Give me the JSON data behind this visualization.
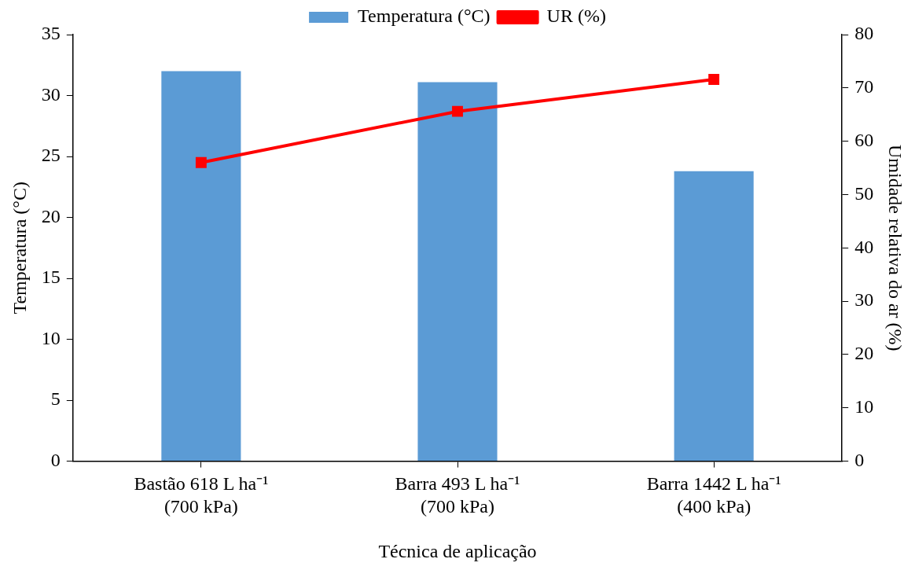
{
  "chart_data": {
    "type": "bar",
    "xlabel": "Técnica de aplicação",
    "ylabel": "Temperatura (°C)",
    "y2label": "Umidade relativa do ar (%)",
    "categories": [
      "Bastão 618 L ha⁻¹\n(700 kPa)",
      "Barra 493 L ha⁻¹\n(700 kPa)",
      "Barra 1442 L ha⁻¹\n(400 kPa)"
    ],
    "series": [
      {
        "name": "Temperatura (°C)",
        "color": "#5b9bd5",
        "values": [
          32,
          31.1,
          23.8
        ]
      },
      {
        "name": "UR (%)",
        "type": "line",
        "axis": "y2",
        "color": "#ff0000",
        "values": [
          56,
          65.6,
          71.6
        ],
        "marker": "square"
      }
    ],
    "ylim": [
      0,
      35
    ],
    "yticks": [
      0,
      5,
      10,
      15,
      20,
      25,
      30,
      35
    ],
    "y2lim": [
      0,
      80
    ],
    "y2ticks": [
      0,
      10,
      20,
      30,
      40,
      50,
      60,
      70,
      80
    ],
    "grid": false,
    "legend": "top"
  }
}
